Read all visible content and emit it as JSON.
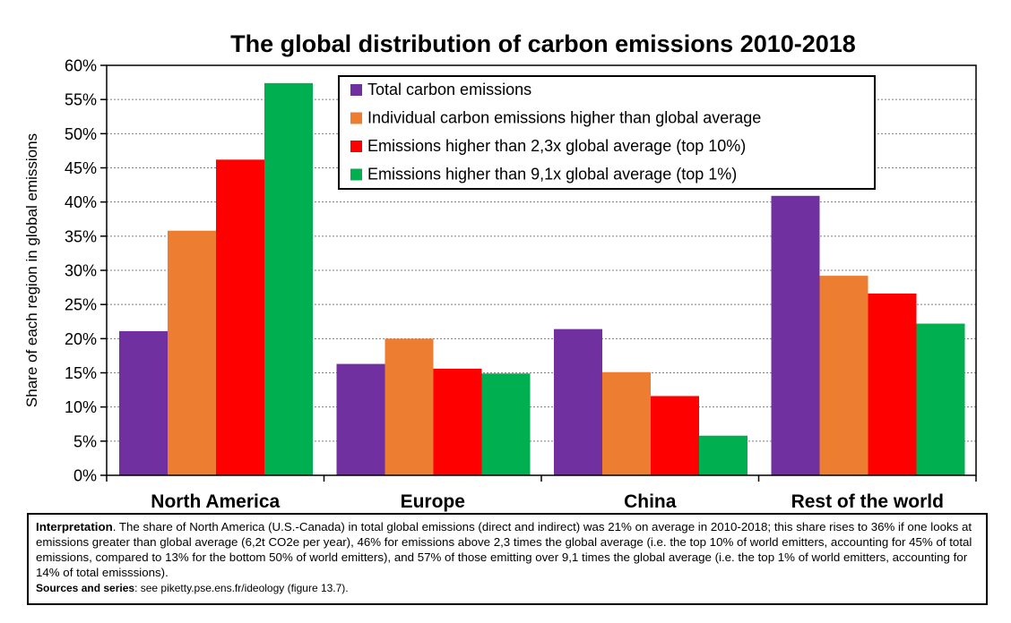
{
  "chart_data": {
    "type": "bar",
    "title": "The global distribution of carbon emissions 2010-2018",
    "ylabel": "Share of each region in global emissions",
    "xlabel": "",
    "ylim": [
      0,
      60
    ],
    "y_ticks": [
      0,
      5,
      10,
      15,
      20,
      25,
      30,
      35,
      40,
      45,
      50,
      55,
      60
    ],
    "y_tick_suffix": "%",
    "grid": true,
    "legend_position": "top-right",
    "categories": [
      "North America",
      "Europe",
      "China",
      "Rest of the world"
    ],
    "series": [
      {
        "name": "Total carbon emissions",
        "color": "#7030A0",
        "values": [
          21.1,
          16.3,
          21.4,
          40.9
        ]
      },
      {
        "name": "Individual carbon emissions higher than global average",
        "color": "#ED7D31",
        "values": [
          35.8,
          20.0,
          15.1,
          29.2
        ]
      },
      {
        "name": "Emissions higher than 2,3x global average (top 10%)",
        "color": "#FF0000",
        "values": [
          46.2,
          15.6,
          11.6,
          26.6
        ]
      },
      {
        "name": "Emissions higher than 9,1x global average (top 1%)",
        "color": "#00B050",
        "values": [
          57.4,
          14.9,
          5.8,
          22.2
        ]
      }
    ]
  },
  "footnote": {
    "interp_label": "Interpretation",
    "interp_text": ". The share of North America (U.S.-Canada) in total global emissions (direct and indirect) was 21% on average in 2010-2018; this share rises to 36% if one looks at emissions greater than global average (6,2t CO2e per year), 46% for emissions above 2,3 times the global average (i.e. the top 10% of world emitters, accounting for 45% of total emissions, compared to 13% for the bottom 50% of world emitters), and 57% of those emitting over 9,1 times the global average (i.e. the top 1% of world emitters, accounting for 14% of total emisssions).",
    "sources_label": "Sources and series",
    "sources_text": ": see piketty.pse.ens.fr/ideology (figure 13.7)."
  }
}
